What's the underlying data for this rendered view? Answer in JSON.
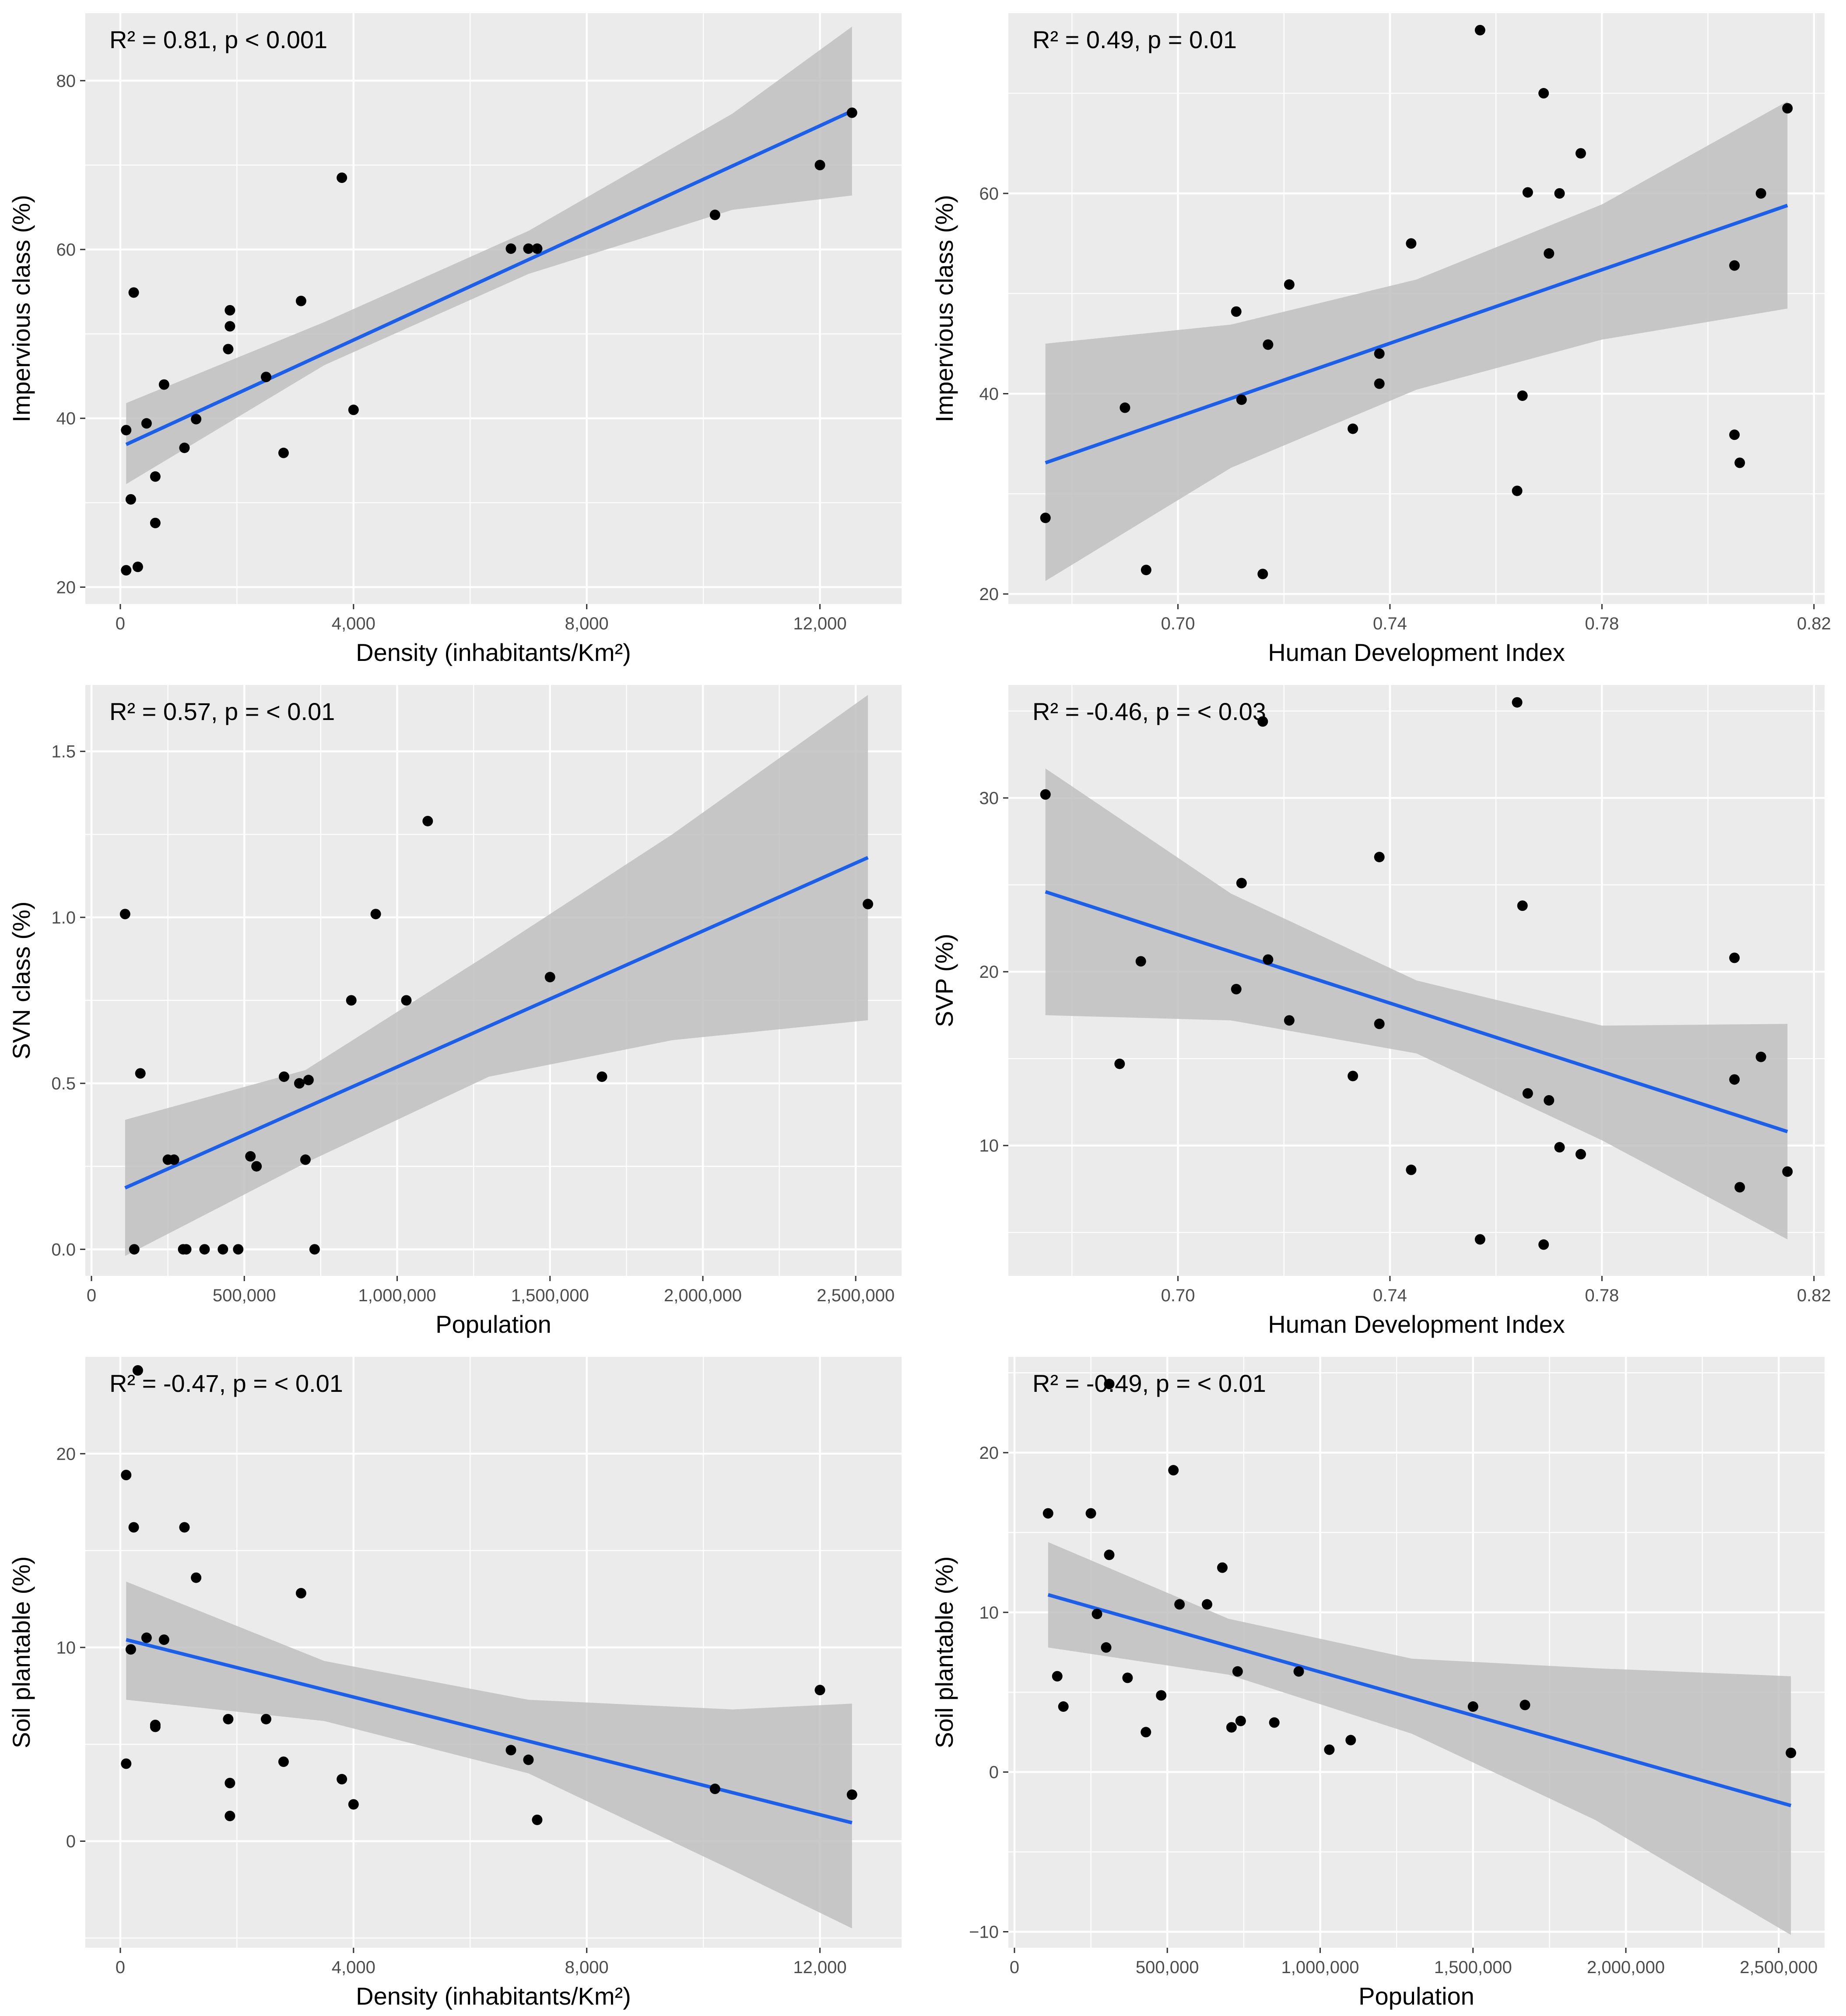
{
  "colors": {
    "panel_bg": "#ebebeb",
    "grid_major": "#ffffff",
    "point": "#000000",
    "fit_line": "#1e5fe8",
    "ci_band": "#bfbfbf",
    "axis_text": "#4d4d4d"
  },
  "chart_data": [
    {
      "type": "scatter",
      "title": "",
      "annotation": "R² = 0.81, p < 0.001",
      "xlabel": "Density (inhabitants/Km²)",
      "ylabel": "Impervious class (%)",
      "xlim": [
        -600,
        13400
      ],
      "ylim": [
        18,
        88
      ],
      "x_ticks": [
        0,
        4000,
        8000,
        12000
      ],
      "x_tick_labels": [
        "0",
        "4,000",
        "8,000",
        "12,000"
      ],
      "y_ticks": [
        20,
        40,
        60,
        80
      ],
      "y_tick_labels": [
        "20",
        "40",
        "60",
        "80"
      ],
      "grid": true,
      "points": [
        [
          100,
          22
        ],
        [
          100,
          38.6
        ],
        [
          180,
          30.4
        ],
        [
          230,
          54.9
        ],
        [
          300,
          22.4
        ],
        [
          450,
          39.4
        ],
        [
          600,
          27.6
        ],
        [
          600,
          33.1
        ],
        [
          750,
          44
        ],
        [
          1100,
          36.5
        ],
        [
          1300,
          39.9
        ],
        [
          1850,
          48.2
        ],
        [
          1880,
          50.9
        ],
        [
          1880,
          52.8
        ],
        [
          2500,
          44.9
        ],
        [
          2800,
          35.9
        ],
        [
          3100,
          53.9
        ],
        [
          3800,
          68.5
        ],
        [
          4000,
          41
        ],
        [
          6700,
          60.1
        ],
        [
          7000,
          60.1
        ],
        [
          7150,
          60.1
        ],
        [
          10200,
          64.1
        ],
        [
          12000,
          70
        ],
        [
          12550,
          76.2
        ]
      ],
      "fit": {
        "x": [
          100,
          12550
        ],
        "y": [
          36.9,
          76.4
        ]
      },
      "ci": {
        "x": [
          100,
          3500,
          7000,
          10500,
          12550
        ],
        "lower": [
          32.2,
          46.3,
          57.1,
          64.7,
          66.4
        ],
        "upper": [
          41.8,
          51.4,
          62.2,
          76.1,
          86.4
        ]
      }
    },
    {
      "type": "scatter",
      "title": "",
      "annotation": "R² = 0.49, p = 0.01",
      "xlabel": "Human Development Index",
      "ylabel": "Impervious class (%)",
      "xlim": [
        0.668,
        0.822
      ],
      "ylim": [
        19,
        78
      ],
      "x_ticks": [
        0.7,
        0.74,
        0.78,
        0.82
      ],
      "x_tick_labels": [
        "0.70",
        "0.74",
        "0.78",
        "0.82"
      ],
      "y_ticks": [
        20,
        40,
        60
      ],
      "y_tick_labels": [
        "20",
        "40",
        "60"
      ],
      "grid": true,
      "points": [
        [
          0.675,
          27.6
        ],
        [
          0.69,
          38.6
        ],
        [
          0.694,
          22.4
        ],
        [
          0.711,
          48.2
        ],
        [
          0.712,
          39.4
        ],
        [
          0.716,
          22
        ],
        [
          0.717,
          44.9
        ],
        [
          0.721,
          50.9
        ],
        [
          0.733,
          36.5
        ],
        [
          0.738,
          44
        ],
        [
          0.738,
          41
        ],
        [
          0.744,
          55
        ],
        [
          0.757,
          76.3
        ],
        [
          0.764,
          30.3
        ],
        [
          0.765,
          39.8
        ],
        [
          0.766,
          60.1
        ],
        [
          0.769,
          70
        ],
        [
          0.77,
          54
        ],
        [
          0.772,
          60
        ],
        [
          0.776,
          64
        ],
        [
          0.805,
          52.8
        ],
        [
          0.805,
          35.9
        ],
        [
          0.806,
          33.1
        ],
        [
          0.81,
          60
        ],
        [
          0.815,
          68.5
        ]
      ],
      "fit": {
        "x": [
          0.675,
          0.815
        ],
        "y": [
          33.1,
          58.8
        ]
      },
      "ci": {
        "x": [
          0.675,
          0.71,
          0.745,
          0.78,
          0.815
        ],
        "lower": [
          21.3,
          32.6,
          40.4,
          45.4,
          48.5
        ],
        "upper": [
          45,
          46.9,
          51.4,
          58.9,
          69.2
        ]
      }
    },
    {
      "type": "scatter",
      "title": "",
      "annotation": "R² = 0.57, p = < 0.01",
      "xlabel": "Population",
      "ylabel": "SVN class (%)",
      "xlim": [
        -20000,
        2650000
      ],
      "ylim": [
        -0.08,
        1.7
      ],
      "x_ticks": [
        0,
        500000,
        1000000,
        1500000,
        2000000,
        2500000
      ],
      "x_tick_labels": [
        "0",
        "500,000",
        "1,000,000",
        "1,500,000",
        "2,000,000",
        "2,500,000"
      ],
      "y_ticks": [
        0,
        0.5,
        1.0,
        1.5
      ],
      "y_tick_labels": [
        "0.0",
        "0.5",
        "1.0",
        "1.5"
      ],
      "grid": true,
      "points": [
        [
          110000,
          1.01
        ],
        [
          140000,
          0
        ],
        [
          160000,
          0.53
        ],
        [
          250000,
          0.27
        ],
        [
          270000,
          0.27
        ],
        [
          300000,
          0
        ],
        [
          310000,
          0
        ],
        [
          370000,
          0
        ],
        [
          430000,
          0
        ],
        [
          480000,
          0
        ],
        [
          520000,
          0.28
        ],
        [
          540000,
          0.25
        ],
        [
          630000,
          0.52
        ],
        [
          680000,
          0.5
        ],
        [
          710000,
          0.51
        ],
        [
          700000,
          0.27
        ],
        [
          730000,
          0
        ],
        [
          850000,
          0.75
        ],
        [
          930000,
          1.01
        ],
        [
          1030000,
          0.75
        ],
        [
          1100000,
          1.29
        ],
        [
          1500000,
          0.82
        ],
        [
          1670000,
          0.52
        ],
        [
          2540000,
          1.04
        ]
      ],
      "fit": {
        "x": [
          110000,
          2540000
        ],
        "y": [
          0.185,
          1.18
        ]
      },
      "ci": {
        "x": [
          110000,
          700000,
          1300000,
          1900000,
          2540000
        ],
        "lower": [
          -0.02,
          0.26,
          0.52,
          0.63,
          0.69
        ],
        "upper": [
          0.39,
          0.54,
          0.89,
          1.25,
          1.67
        ]
      }
    },
    {
      "type": "scatter",
      "title": "",
      "annotation": "R² = -0.46, p = < 0.03",
      "xlabel": "Human Development Index",
      "ylabel": "SVP (%)",
      "xlim": [
        0.668,
        0.822
      ],
      "ylim": [
        2.5,
        36.5
      ],
      "x_ticks": [
        0.7,
        0.74,
        0.78,
        0.82
      ],
      "x_tick_labels": [
        "0.70",
        "0.74",
        "0.78",
        "0.82"
      ],
      "y_ticks": [
        10,
        20,
        30
      ],
      "y_tick_labels": [
        "10",
        "20",
        "30"
      ],
      "grid": true,
      "points": [
        [
          0.675,
          30.2
        ],
        [
          0.689,
          14.7
        ],
        [
          0.693,
          20.6
        ],
        [
          0.711,
          19
        ],
        [
          0.712,
          25.1
        ],
        [
          0.716,
          34.4
        ],
        [
          0.717,
          20.7
        ],
        [
          0.721,
          17.2
        ],
        [
          0.733,
          14
        ],
        [
          0.738,
          26.6
        ],
        [
          0.738,
          17
        ],
        [
          0.744,
          8.6
        ],
        [
          0.757,
          4.6
        ],
        [
          0.764,
          35.5
        ],
        [
          0.765,
          23.8
        ],
        [
          0.766,
          13
        ],
        [
          0.769,
          4.3
        ],
        [
          0.77,
          12.6
        ],
        [
          0.772,
          9.9
        ],
        [
          0.776,
          9.5
        ],
        [
          0.805,
          20.8
        ],
        [
          0.805,
          13.8
        ],
        [
          0.806,
          7.6
        ],
        [
          0.81,
          15.1
        ],
        [
          0.815,
          8.5
        ]
      ],
      "fit": {
        "x": [
          0.675,
          0.815
        ],
        "y": [
          24.6,
          10.8
        ]
      },
      "ci": {
        "x": [
          0.675,
          0.71,
          0.745,
          0.78,
          0.815
        ],
        "lower": [
          17.5,
          17.2,
          15.3,
          10.3,
          4.6
        ],
        "upper": [
          31.7,
          24.5,
          19.5,
          16.9,
          17
        ]
      }
    },
    {
      "type": "scatter",
      "title": "",
      "annotation": "R² = -0.47, p = < 0.01",
      "xlabel": "Density (inhabitants/Km²)",
      "ylabel": "Soil plantable (%)",
      "xlim": [
        -600,
        13400
      ],
      "ylim": [
        -5.5,
        25
      ],
      "x_ticks": [
        0,
        4000,
        8000,
        12000
      ],
      "x_tick_labels": [
        "0",
        "4,000",
        "8,000",
        "12,000"
      ],
      "y_ticks": [
        0,
        10,
        20
      ],
      "y_tick_labels": [
        "0",
        "10",
        "20"
      ],
      "grid": true,
      "points": [
        [
          100,
          18.9
        ],
        [
          100,
          4
        ],
        [
          180,
          9.9
        ],
        [
          230,
          16.2
        ],
        [
          300,
          24.3
        ],
        [
          450,
          10.5
        ],
        [
          600,
          5.9
        ],
        [
          600,
          6
        ],
        [
          750,
          10.4
        ],
        [
          1100,
          16.2
        ],
        [
          1300,
          13.6
        ],
        [
          1850,
          6.3
        ],
        [
          1880,
          3
        ],
        [
          1880,
          1.3
        ],
        [
          2500,
          6.3
        ],
        [
          2800,
          4.1
        ],
        [
          3100,
          12.8
        ],
        [
          3800,
          3.2
        ],
        [
          4000,
          1.9
        ],
        [
          6700,
          4.7
        ],
        [
          7000,
          4.2
        ],
        [
          7150,
          1.1
        ],
        [
          10200,
          2.7
        ],
        [
          12000,
          7.8
        ],
        [
          12550,
          2.4
        ]
      ],
      "fit": {
        "x": [
          100,
          12550
        ],
        "y": [
          10.4,
          0.95
        ]
      },
      "ci": {
        "x": [
          100,
          3500,
          7000,
          10500,
          12550
        ],
        "lower": [
          7.3,
          6.2,
          3.5,
          -1.5,
          -4.5
        ],
        "upper": [
          13.4,
          9.3,
          7.3,
          6.8,
          7.1
        ]
      }
    },
    {
      "type": "scatter",
      "title": "",
      "annotation": "R² = -0.49, p = < 0.01",
      "xlabel": "Population",
      "ylabel": "Soil plantable (%)",
      "xlim": [
        -20000,
        2650000
      ],
      "ylim": [
        -11,
        26
      ],
      "x_ticks": [
        0,
        500000,
        1000000,
        1500000,
        2000000,
        2500000
      ],
      "x_tick_labels": [
        "0",
        "500,000",
        "1,000,000",
        "1,500,000",
        "2,000,000",
        "2,500,000"
      ],
      "y_ticks": [
        -10,
        0,
        10,
        20
      ],
      "y_tick_labels": [
        "−10",
        "0",
        "10",
        "20"
      ],
      "grid": true,
      "points": [
        [
          110000,
          16.2
        ],
        [
          140000,
          6
        ],
        [
          160000,
          4.1
        ],
        [
          250000,
          16.2
        ],
        [
          270000,
          9.9
        ],
        [
          300000,
          7.8
        ],
        [
          310000,
          13.6
        ],
        [
          370000,
          5.9
        ],
        [
          430000,
          2.5
        ],
        [
          480000,
          4.8
        ],
        [
          520000,
          18.9
        ],
        [
          540000,
          10.5
        ],
        [
          630000,
          10.5
        ],
        [
          680000,
          12.8
        ],
        [
          710000,
          2.8
        ],
        [
          730000,
          6.3
        ],
        [
          740000,
          3.2
        ],
        [
          850000,
          3.1
        ],
        [
          930000,
          6.3
        ],
        [
          1030000,
          1.4
        ],
        [
          1100000,
          2
        ],
        [
          1500000,
          4.1
        ],
        [
          1670000,
          4.2
        ],
        [
          2540000,
          1.2
        ],
        [
          310000,
          24.3
        ]
      ],
      "fit": {
        "x": [
          110000,
          2540000
        ],
        "y": [
          11.1,
          -2.1
        ]
      },
      "ci": {
        "x": [
          110000,
          700000,
          1300000,
          1900000,
          2540000
        ],
        "lower": [
          7.8,
          6.1,
          2.4,
          -3,
          -10.2
        ],
        "upper": [
          14.4,
          9.6,
          7.1,
          6.5,
          6
        ]
      }
    }
  ]
}
